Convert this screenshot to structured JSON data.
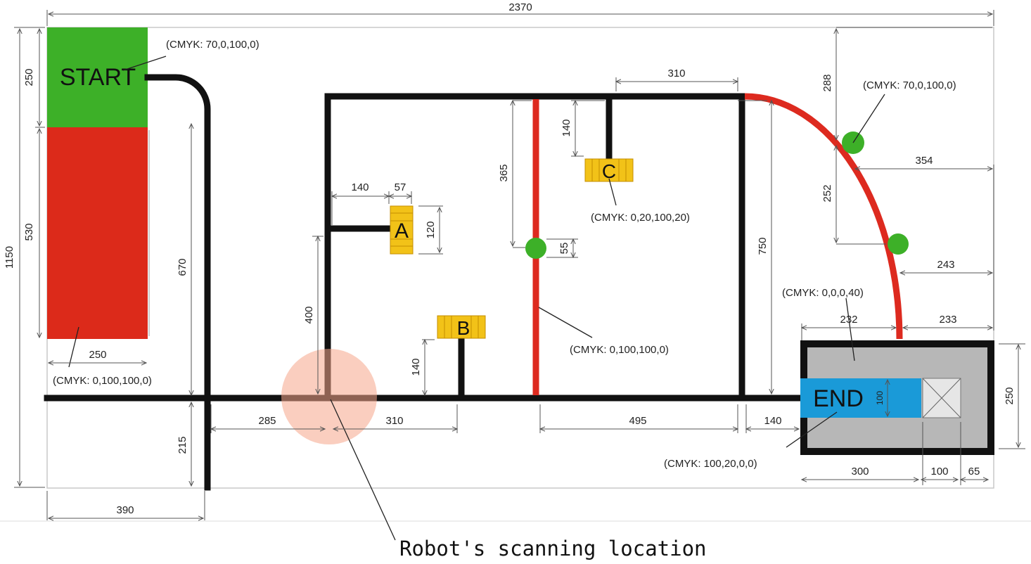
{
  "dimensions": {
    "total_width": "2370",
    "total_height": "1150",
    "start_height": "250",
    "red_zone_height": "530",
    "red_zone_width": "250",
    "path_height_left": "670",
    "bottom_stub": "215",
    "left_offset": "390",
    "top_segment": "310",
    "c_stub": "140",
    "red_line_upper": "365",
    "green_dot_gap": "55",
    "a_stub": "140",
    "a_width": "57",
    "a_height": "120",
    "scan_height": "400",
    "b_stub": "140",
    "seg_285": "285",
    "seg_310": "310",
    "seg_495": "495",
    "seg_140": "140",
    "right_vertical": "750",
    "arc_top": "288",
    "arc_dot1_right": "354",
    "arc_mid": "252",
    "arc_dot2_right": "243",
    "end_left": "232",
    "end_right": "233",
    "end_box_height": "250",
    "end_zone_height": "100",
    "end_bottom_300": "300",
    "end_bottom_100": "100",
    "end_bottom_65": "65"
  },
  "labels": {
    "start": "START",
    "end": "END",
    "box_a": "A",
    "box_b": "B",
    "box_c": "C",
    "cmyk_start": "(CMYK: 70,0,100,0)",
    "cmyk_red_zone": "(CMYK: 0,100,100,0)",
    "cmyk_box_c": "(CMYK: 0,20,100,20)",
    "cmyk_red_line": "(CMYK: 0,100,100,0)",
    "cmyk_green_dot": "(CMYK: 70,0,100,0)",
    "cmyk_grey": "(CMYK: 0,0,0,40)",
    "cmyk_end": "(CMYK: 100,20,0,0)",
    "caption": "Robot's scanning location"
  },
  "colors": {
    "green": "#3db028",
    "red": "#dc2a1a",
    "red_line": "#dd2a1f",
    "yellow": "#f2c218",
    "grey": "#b7b7b7",
    "blue": "#1a9ad8",
    "black": "#111111",
    "scan_highlight": "#f5a68a"
  }
}
